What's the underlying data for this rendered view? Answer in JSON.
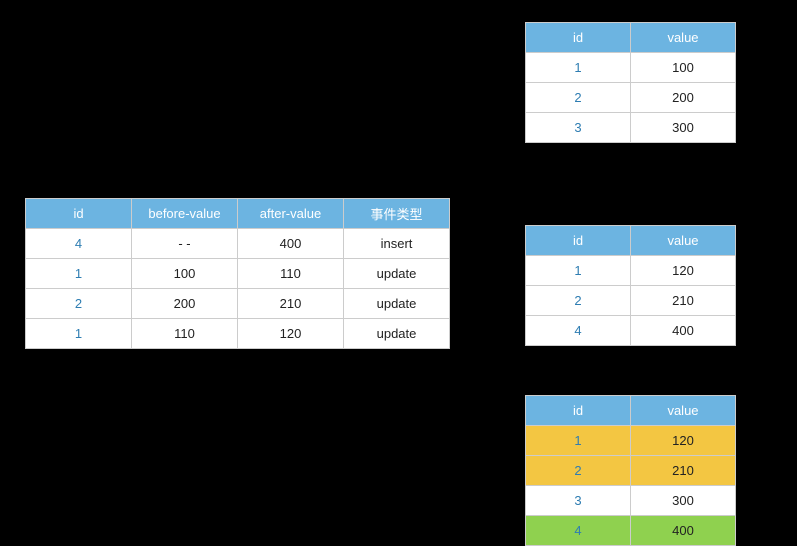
{
  "colors": {
    "header_bg": "#6cb4e1",
    "header_text": "#ffffff",
    "border": "#cccccc",
    "id_text": "#2e7db2",
    "value_text": "#222222",
    "highlight_yellow": "#f3c642",
    "highlight_green": "#8fd14f",
    "page_bg": "#000000",
    "cell_bg": "#ffffff"
  },
  "left_table": {
    "columns": [
      "id",
      "before-value",
      "after-value",
      "事件类型"
    ],
    "rows": [
      {
        "id": "4",
        "before": "- -",
        "after": "400",
        "event": "insert"
      },
      {
        "id": "1",
        "before": "100",
        "after": "110",
        "event": "update"
      },
      {
        "id": "2",
        "before": "200",
        "after": "210",
        "event": "update"
      },
      {
        "id": "1",
        "before": "110",
        "after": "120",
        "event": "update"
      }
    ]
  },
  "right_tables": {
    "columns": [
      "id",
      "value"
    ],
    "t1": {
      "rows": [
        {
          "id": "1",
          "value": "100",
          "hl": "none"
        },
        {
          "id": "2",
          "value": "200",
          "hl": "none"
        },
        {
          "id": "3",
          "value": "300",
          "hl": "none"
        }
      ]
    },
    "t2": {
      "rows": [
        {
          "id": "1",
          "value": "120",
          "hl": "none"
        },
        {
          "id": "2",
          "value": "210",
          "hl": "none"
        },
        {
          "id": "4",
          "value": "400",
          "hl": "none"
        }
      ]
    },
    "t3": {
      "rows": [
        {
          "id": "1",
          "value": "120",
          "hl": "yellow"
        },
        {
          "id": "2",
          "value": "210",
          "hl": "yellow"
        },
        {
          "id": "3",
          "value": "300",
          "hl": "none"
        },
        {
          "id": "4",
          "value": "400",
          "hl": "green"
        }
      ]
    }
  }
}
